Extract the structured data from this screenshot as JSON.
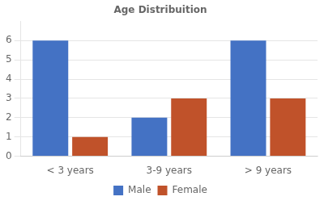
{
  "chart_data": {
    "type": "bar",
    "title": "Age Distribuition",
    "categories": [
      "< 3 years",
      "3-9 years",
      "> 9 years"
    ],
    "series": [
      {
        "name": "Male",
        "color": "#4472C4",
        "values": [
          6,
          2,
          6
        ]
      },
      {
        "name": "Female",
        "color": "#C0522A",
        "values": [
          1,
          3,
          3
        ]
      }
    ],
    "ylim": [
      0,
      7
    ],
    "yticks": [
      0,
      1,
      2,
      3,
      4,
      5,
      6
    ],
    "grid": true,
    "legend": "bottom"
  }
}
